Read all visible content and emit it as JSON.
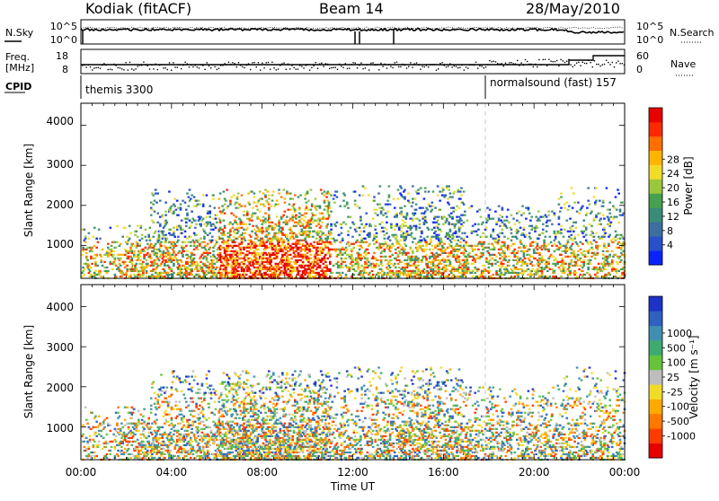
{
  "header": {
    "station": "Kodiak (fitACF)",
    "beam": "Beam 14",
    "date": "28/May/2010"
  },
  "top_panel": {
    "left_label": "N.Sky",
    "left_ticks": [
      "10^5",
      "10^0"
    ],
    "right_ticks": [
      "10^5",
      "10^0"
    ],
    "right_label": "N.Search"
  },
  "freq_panel": {
    "left_label_1": "Freq.",
    "left_label_2": "[MHz]",
    "left_ticks": [
      "18",
      "8"
    ],
    "right_ticks": [
      "60",
      "0"
    ],
    "right_label": "Nave"
  },
  "cpid": {
    "label": "CPID",
    "segments": [
      {
        "name": "themis 3300",
        "start_hour": 0
      },
      {
        "name": "normalsound (fast) 157",
        "start_hour": 18.0
      }
    ]
  },
  "x_axis": {
    "title": "Time UT",
    "tick_labels": [
      "00:00",
      "04:00",
      "08:00",
      "12:00",
      "16:00",
      "20:00",
      "00:00"
    ],
    "range_hours": [
      0,
      24
    ]
  },
  "chart_data": [
    {
      "type": "heatmap",
      "name": "power",
      "ylabel": "Slant Range [km]",
      "ylim": [
        180,
        4550
      ],
      "y_ticks": [
        "1000",
        "2000",
        "3000",
        "4000"
      ],
      "colorbar": {
        "title": "Power [dB]",
        "range": [
          0,
          32
        ],
        "tick_labels": [
          "4",
          "8",
          "12",
          "16",
          "20",
          "24",
          "28"
        ],
        "colors": [
          "#0a22ff",
          "#2850c8",
          "#3c6ea0",
          "#3a8c78",
          "#46a050",
          "#9ac83c",
          "#f0dc28",
          "#ffb400",
          "#ff6e00",
          "#ff2800",
          "#e60000"
        ]
      }
    },
    {
      "type": "heatmap",
      "name": "velocity",
      "ylabel": "Slant Range [km]",
      "ylim": [
        180,
        4550
      ],
      "y_ticks": [
        "1000",
        "2000",
        "3000",
        "4000"
      ],
      "colorbar": {
        "title": "Velocity [m s⁻¹]",
        "tick_labels": [
          "1000",
          "500",
          "100",
          "25",
          "-25",
          "-100",
          "-500",
          "-1000"
        ],
        "colors": [
          "#1e32c8",
          "#2f62c0",
          "#3f8fb0",
          "#3eab6e",
          "#66c43c",
          "#bebebe",
          "#f0dc28",
          "#ffaa00",
          "#ff7800",
          "#ff3c00",
          "#e60000"
        ]
      }
    }
  ]
}
